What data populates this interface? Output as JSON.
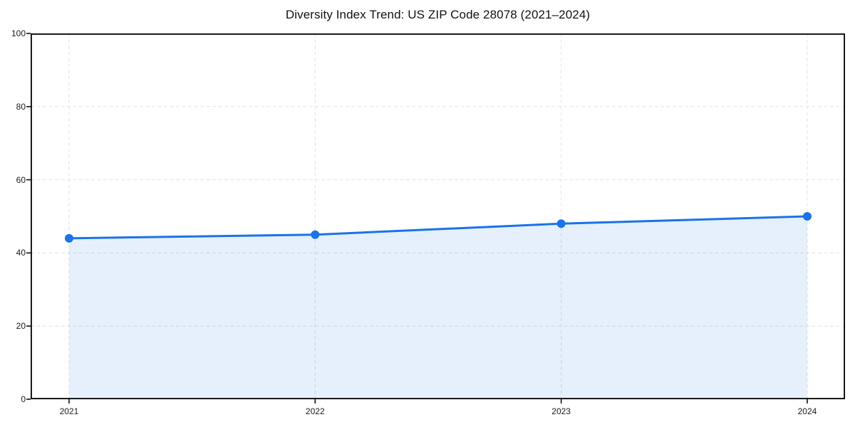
{
  "page": {
    "background": "#ffffff"
  },
  "chart_data": {
    "type": "area",
    "title": "Diversity Index Trend: US ZIP Code 28078 (2021–2024)",
    "categories": [
      "2021",
      "2022",
      "2023",
      "2024"
    ],
    "values": [
      44,
      45,
      48,
      50
    ],
    "xlabel": "",
    "ylabel": "",
    "ylim": [
      0,
      100
    ],
    "yticks": [
      0,
      20,
      40,
      60,
      80,
      100
    ],
    "grid": "dashed",
    "legend_position": "none",
    "colors": {
      "line": "#1a73e8",
      "marker": "#1a73e8",
      "fill": "#1a73e8",
      "fill_opacity": 0.11,
      "gridline": "#e2e2e2",
      "axis": "#000000",
      "tick_text": "#1a1a1a",
      "title_text": "#111111",
      "background": "#ffffff"
    }
  }
}
